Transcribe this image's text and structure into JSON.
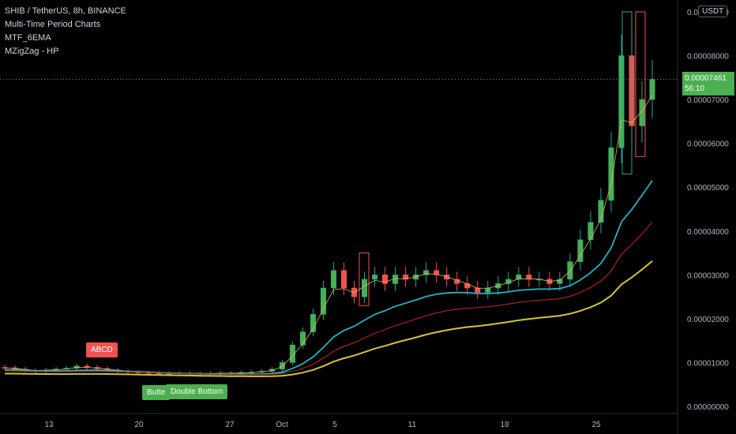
{
  "legend": {
    "symbol": "SHIB / TetherUS, 8h, BINANCE",
    "ind1": "Multi-Time Period Charts",
    "ind2": "MTF_6EMA",
    "ind3": "MZigZag - HP"
  },
  "currency_button": "USDT",
  "last_price": {
    "value": "0.00007461",
    "countdown": "56:10",
    "color": "#4caf50"
  },
  "patterns": [
    {
      "label": "ABCD",
      "color": "#f05350"
    },
    {
      "label": "Butte",
      "color": "#4caf50"
    },
    {
      "label": "Double Bottom",
      "color": "#4caf50"
    }
  ],
  "colors": {
    "up": "#26a69a",
    "up_fill": "#4caf50",
    "down": "#f05350",
    "ema_cyan": "#22b5c4",
    "ema_red": "#c62828",
    "ema_yellow": "#d4c33a",
    "ema_fast": "#e6b54a"
  },
  "chart_data": {
    "type": "candlestick",
    "ylabel": "USDT",
    "ylim": [
      0,
      9.18e-05
    ],
    "y_ticks": [
      "0.00000000",
      "0.00001000",
      "0.00002000",
      "0.00003000",
      "0.00004000",
      "0.00005000",
      "0.00006000",
      "0.00007000",
      "0.00008000",
      "0.00009000"
    ],
    "x_ticks": [
      "13",
      "20",
      "27",
      "Oct",
      "5",
      "11",
      "18",
      "25"
    ],
    "last_price": 7.461e-05,
    "series_close": [
      8.8e-06,
      8.5e-06,
      8.2e-06,
      8e-06,
      8.3e-06,
      8.5e-06,
      8.7e-06,
      9.2e-06,
      8.9e-06,
      8.6e-06,
      8.3e-06,
      8e-06,
      7.8e-06,
      7.7e-06,
      7.6e-06,
      7.5e-06,
      7.5e-06,
      7.6e-06,
      7.5e-06,
      7.5e-06,
      7.5e-06,
      7.6e-06,
      7.6e-06,
      7.7e-06,
      7.8e-06,
      8e-06,
      8.5e-06,
      1e-05,
      1.4e-05,
      1.7e-05,
      2.1e-05,
      2.7e-05,
      3.1e-05,
      2.7e-05,
      2.5e-05,
      2.9e-05,
      3e-05,
      2.8e-05,
      3e-05,
      2.9e-05,
      3e-05,
      3.1e-05,
      3e-05,
      2.9e-05,
      2.8e-05,
      2.7e-05,
      2.6e-05,
      2.7e-05,
      2.8e-05,
      2.9e-05,
      3e-05,
      2.9e-05,
      2.9e-05,
      2.8e-05,
      2.9e-05,
      3.3e-05,
      3.8e-05,
      4.2e-05,
      4.7e-05,
      5.9e-05,
      8e-05,
      6.4e-05,
      7e-05,
      7.46e-05
    ],
    "series_ema": [
      {
        "name": "EMA fast",
        "color": "#e6b54a"
      },
      {
        "name": "EMA mid",
        "color": "#22b5c4"
      },
      {
        "name": "EMA slow",
        "color": "#c62828"
      },
      {
        "name": "EMA long",
        "color": "#d4c33a"
      }
    ]
  }
}
